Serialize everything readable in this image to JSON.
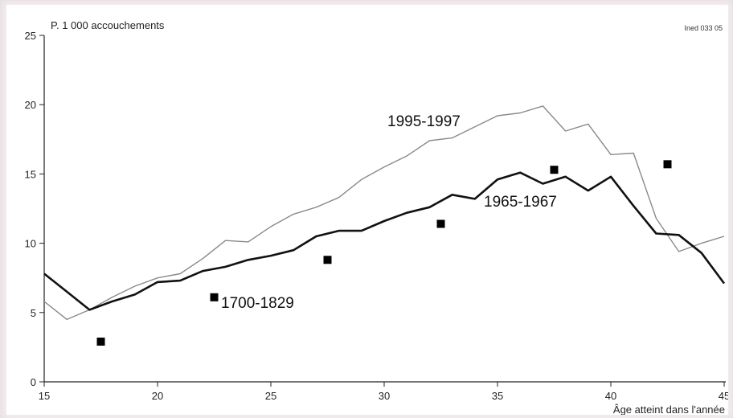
{
  "chart_data": {
    "type": "line",
    "ylabel": "P. 1 000 accouchements",
    "xlabel": "Âge atteint dans l'année",
    "source_code": "Ined 033 05",
    "xlim": [
      15,
      45
    ],
    "ylim": [
      0,
      25
    ],
    "x_ticks": [
      15,
      20,
      25,
      30,
      35,
      40,
      45
    ],
    "y_ticks": [
      0,
      5,
      10,
      15,
      20,
      25
    ],
    "grid": false,
    "series": [
      {
        "name": "1995-1997",
        "style": "thin-gray",
        "color": "#8a8a8a",
        "x": [
          15,
          16,
          17,
          18,
          19,
          20,
          21,
          22,
          23,
          24,
          25,
          26,
          27,
          28,
          29,
          30,
          31,
          32,
          33,
          34,
          35,
          36,
          37,
          38,
          39,
          40,
          41,
          42,
          43,
          44,
          45
        ],
        "y": [
          5.8,
          4.5,
          5.2,
          6.1,
          6.9,
          7.5,
          7.8,
          8.9,
          10.2,
          10.1,
          11.2,
          12.1,
          12.6,
          13.3,
          14.6,
          15.5,
          16.3,
          17.4,
          17.6,
          18.4,
          19.2,
          19.4,
          19.9,
          18.1,
          18.6,
          16.4,
          16.5,
          11.8,
          9.4,
          10.0,
          10.5
        ]
      },
      {
        "name": "1965-1967",
        "style": "thick-black",
        "color": "#111111",
        "x": [
          15,
          16,
          17,
          18,
          19,
          20,
          21,
          22,
          23,
          24,
          25,
          26,
          27,
          28,
          29,
          30,
          31,
          32,
          33,
          34,
          35,
          36,
          37,
          38,
          39,
          40,
          41,
          42,
          43,
          44,
          45
        ],
        "y": [
          7.8,
          6.5,
          5.2,
          5.8,
          6.3,
          7.2,
          7.3,
          8.0,
          8.3,
          8.8,
          9.1,
          9.5,
          10.5,
          10.9,
          10.9,
          11.6,
          12.2,
          12.6,
          13.5,
          13.2,
          14.6,
          15.1,
          14.3,
          14.8,
          13.8,
          14.8,
          12.7,
          10.7,
          10.6,
          9.3,
          7.1
        ]
      },
      {
        "name": "1700-1829",
        "style": "square-markers",
        "color": "#000000",
        "x": [
          17.5,
          22.5,
          27.5,
          32.5,
          37.5,
          42.5
        ],
        "y": [
          2.9,
          6.1,
          8.8,
          11.4,
          15.3,
          15.7
        ]
      }
    ],
    "annotations": [
      {
        "text": "1995-1997",
        "series": "1995-1997"
      },
      {
        "text": "1965-1967",
        "series": "1965-1967"
      },
      {
        "text": "1700-1829",
        "series": "1700-1829"
      }
    ]
  }
}
